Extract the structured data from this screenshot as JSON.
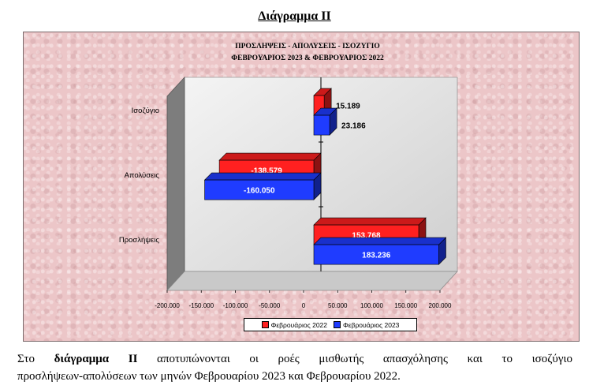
{
  "heading": "Διάγραμμα ΙΙ",
  "chart_data": {
    "type": "bar",
    "orientation": "horizontal",
    "title_line1": "ΠΡΟΣΛΗΨΕΙΣ - ΑΠΟΛΥΣΕΙΣ - ΙΣΟΖΥΓΙΟ",
    "title_line2": "ΦΕΒΡΟΥΑΡΙΟΣ 2023 & ΦΕΒΡΟΥΑΡΙΟΣ 2022",
    "categories": [
      "Ισοζύγιο",
      "Απολύσεις",
      "Προσλήψεις"
    ],
    "series": [
      {
        "name": "Φεβρουάριος 2022",
        "color": "#ff2020",
        "values": [
          15189,
          -138579,
          153768
        ],
        "labels": [
          "15.189",
          "-138.579",
          "153.768"
        ]
      },
      {
        "name": "Φεβρουάριος 2023",
        "color": "#1f3cff",
        "values": [
          23186,
          -160050,
          183236
        ],
        "labels": [
          "23.186",
          "-160.050",
          "183.236"
        ]
      }
    ],
    "xlim": [
      -200000,
      200000
    ],
    "xticks": [
      -200000,
      -150000,
      -100000,
      -50000,
      0,
      50000,
      100000,
      150000,
      200000
    ],
    "xtick_labels": [
      "-200.000",
      "-150.000",
      "-100.000",
      "-50.000",
      "0",
      "50.000",
      "100.000",
      "150.000",
      "200.000"
    ],
    "legend_position": "bottom",
    "grid": false,
    "style": "3d"
  },
  "caption": {
    "part1": "Στο ",
    "bold": "διάγραμμα ΙΙ",
    "part2": " αποτυπώνονται οι ροές μισθωτής απασχόλησης και το ισοζύγιο",
    "line2": "προσλήψεων-απολύσεων των μηνών Φεβρουαρίου 2023 και Φεβρουαρίου 2022."
  }
}
